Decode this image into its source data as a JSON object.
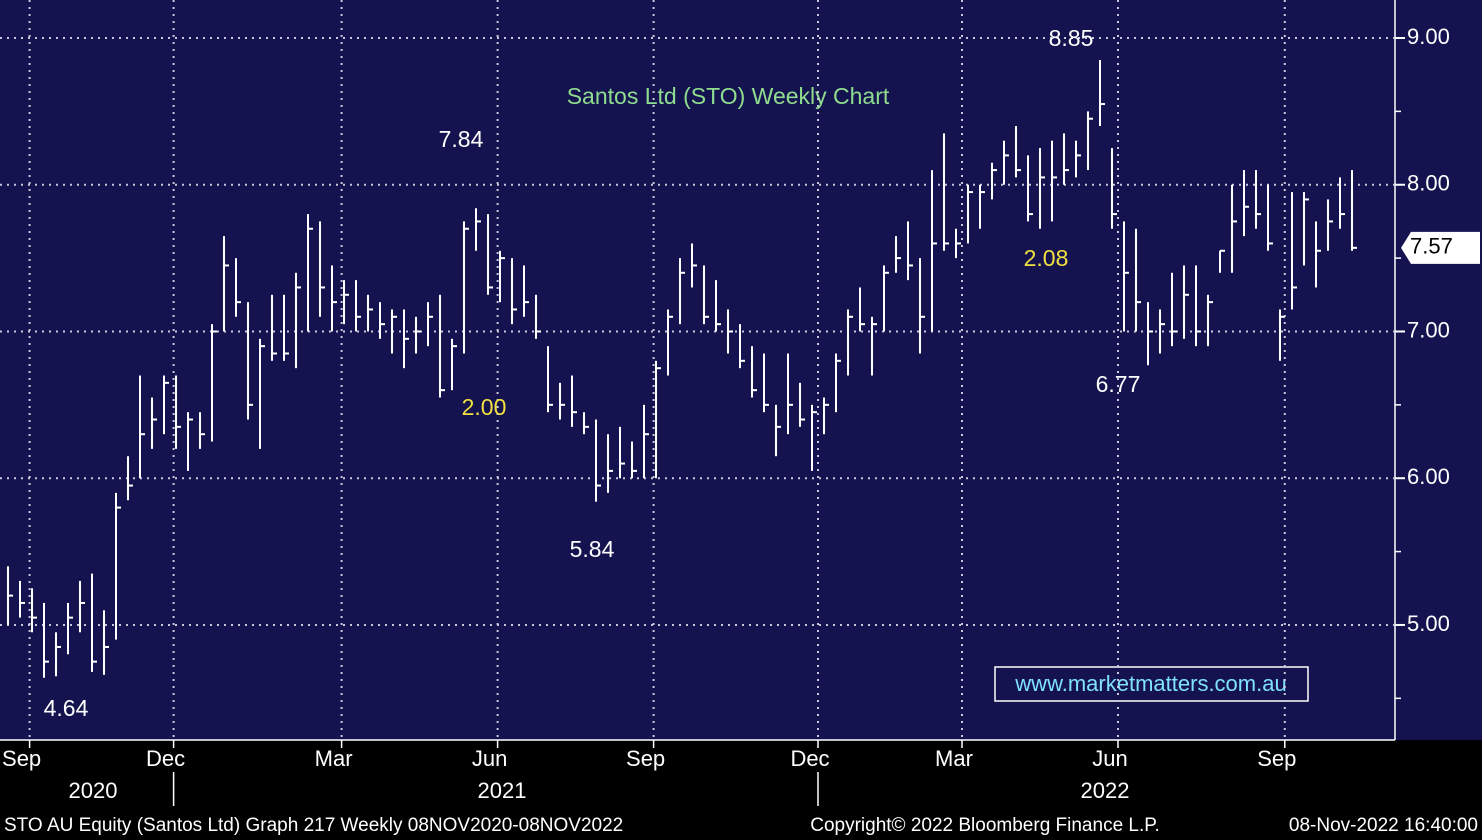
{
  "chart_data": {
    "type": "ohlc",
    "title": "Santos Ltd (STO) Weekly Chart",
    "color": "#ffffff",
    "high": [
      5.4,
      5.3,
      5.25,
      5.15,
      4.95,
      5.15,
      5.3,
      5.35,
      5.1,
      5.9,
      6.15,
      6.7,
      6.55,
      6.7,
      6.7,
      6.45,
      6.45,
      7.05,
      7.65,
      7.5,
      7.2,
      6.95,
      7.25,
      7.25,
      7.4,
      7.8,
      7.75,
      7.45,
      7.35,
      7.35,
      7.25,
      7.2,
      7.15,
      7.15,
      7.1,
      7.2,
      7.25,
      6.95,
      7.75,
      7.84,
      7.8,
      7.55,
      7.5,
      7.45,
      7.25,
      6.9,
      6.65,
      6.7,
      6.45,
      6.4,
      6.3,
      6.35,
      6.25,
      6.5,
      6.8,
      7.15,
      7.5,
      7.6,
      7.45,
      7.35,
      7.15,
      7.05,
      6.9,
      6.85,
      6.5,
      6.85,
      6.65,
      6.5,
      6.55,
      6.85,
      7.15,
      7.3,
      7.1,
      7.45,
      7.65,
      7.75,
      7.5,
      8.1,
      8.35,
      7.7,
      8.0,
      8.0,
      8.15,
      8.3,
      8.4,
      8.2,
      8.25,
      8.3,
      8.35,
      8.3,
      8.5,
      8.85,
      8.25,
      7.75,
      7.7,
      7.2,
      7.15,
      7.4,
      7.45,
      7.45,
      7.25,
      7.55,
      8.0,
      8.1,
      8.1,
      8.0,
      7.15,
      7.95,
      7.95,
      7.75,
      7.9,
      8.05,
      8.1
    ],
    "low": [
      5.0,
      5.05,
      4.95,
      4.64,
      4.65,
      4.8,
      4.95,
      4.68,
      4.66,
      4.9,
      5.85,
      6.0,
      6.2,
      6.3,
      6.2,
      6.05,
      6.2,
      6.25,
      7.0,
      7.1,
      6.4,
      6.2,
      6.8,
      6.8,
      6.75,
      7.0,
      7.1,
      7.0,
      7.05,
      7.0,
      7.0,
      6.95,
      6.85,
      6.75,
      6.85,
      6.9,
      6.55,
      6.6,
      6.85,
      7.55,
      7.25,
      7.2,
      7.05,
      7.1,
      6.95,
      6.45,
      6.4,
      6.35,
      6.3,
      5.84,
      5.9,
      6.0,
      6.0,
      6.0,
      6.0,
      6.7,
      7.05,
      7.3,
      7.05,
      7.0,
      6.85,
      6.75,
      6.55,
      6.45,
      6.15,
      6.3,
      6.35,
      6.05,
      6.3,
      6.45,
      6.7,
      7.0,
      6.7,
      7.0,
      7.4,
      7.35,
      6.85,
      7.0,
      7.55,
      7.5,
      7.6,
      7.7,
      7.9,
      8.0,
      8.05,
      7.75,
      7.7,
      7.75,
      8.0,
      8.05,
      8.1,
      8.4,
      7.7,
      7.0,
      7.0,
      6.77,
      6.85,
      6.9,
      6.95,
      6.9,
      6.9,
      7.4,
      7.4,
      7.65,
      7.7,
      7.55,
      6.8,
      7.15,
      7.45,
      7.3,
      7.55,
      7.7,
      7.55
    ],
    "close": [
      5.2,
      5.15,
      5.05,
      4.75,
      4.85,
      5.05,
      5.15,
      4.75,
      4.85,
      5.8,
      5.95,
      6.3,
      6.4,
      6.65,
      6.35,
      6.4,
      6.3,
      7.0,
      7.45,
      7.2,
      6.5,
      6.9,
      6.85,
      6.85,
      7.3,
      7.7,
      7.3,
      7.2,
      7.25,
      7.1,
      7.15,
      7.05,
      7.1,
      6.95,
      7.0,
      7.1,
      6.6,
      6.9,
      7.7,
      7.75,
      7.3,
      7.5,
      7.15,
      7.2,
      7.0,
      6.5,
      6.5,
      6.45,
      6.35,
      5.95,
      6.05,
      6.1,
      6.05,
      6.3,
      6.75,
      7.1,
      7.4,
      7.45,
      7.1,
      7.05,
      7.0,
      6.8,
      6.6,
      6.5,
      6.35,
      6.5,
      6.4,
      6.45,
      6.5,
      6.8,
      7.1,
      7.05,
      7.05,
      7.4,
      7.5,
      7.45,
      7.1,
      7.6,
      7.6,
      7.6,
      7.95,
      7.95,
      8.1,
      8.2,
      8.1,
      7.8,
      8.05,
      8.05,
      8.1,
      8.2,
      8.45,
      8.55,
      7.8,
      7.4,
      7.2,
      7.0,
      7.05,
      7.0,
      7.25,
      7.0,
      7.2,
      7.55,
      7.75,
      7.85,
      7.8,
      7.6,
      7.1,
      7.3,
      7.9,
      7.55,
      7.75,
      7.8,
      7.57
    ],
    "ylim": [
      4.216,
      9.259
    ],
    "yticks": [
      {
        "value": 9,
        "label": "9.00"
      },
      {
        "value": 8,
        "label": "8.00"
      },
      {
        "value": 7,
        "label": "7.00"
      },
      {
        "value": 6,
        "label": "6.00"
      },
      {
        "value": 5,
        "label": "5.00"
      }
    ],
    "yticks_minor": [
      8.5,
      7.5,
      6.5,
      5.5,
      4.5
    ],
    "xticks": [
      {
        "value": 1.8,
        "label": "Sep"
      },
      {
        "value": 13.8,
        "label": "Dec"
      },
      {
        "value": 27.8,
        "label": "Mar"
      },
      {
        "value": 40.8,
        "label": "Jun"
      },
      {
        "value": 53.8,
        "label": "Sep"
      },
      {
        "value": 67.5,
        "label": "Dec"
      },
      {
        "value": 79.5,
        "label": "Mar"
      },
      {
        "value": 92.5,
        "label": "Jun"
      },
      {
        "value": 106.4,
        "label": "Sep"
      }
    ],
    "years": [
      "2020",
      "2021",
      "2022"
    ],
    "grid": true,
    "annotations": [
      "8.85",
      "7.84",
      "5.84",
      "4.64",
      "6.77",
      "2.08",
      "2.00"
    ],
    "watermark": "www.marketmatters.com.au"
  },
  "footer": {
    "left": "STO AU Equity (Santos Ltd) Graph 217  Weekly 08NOV2020-08NOV2022",
    "center": "Copyright© 2022 Bloomberg Finance L.P.",
    "right": "08-Nov-2022 16:40:00"
  }
}
